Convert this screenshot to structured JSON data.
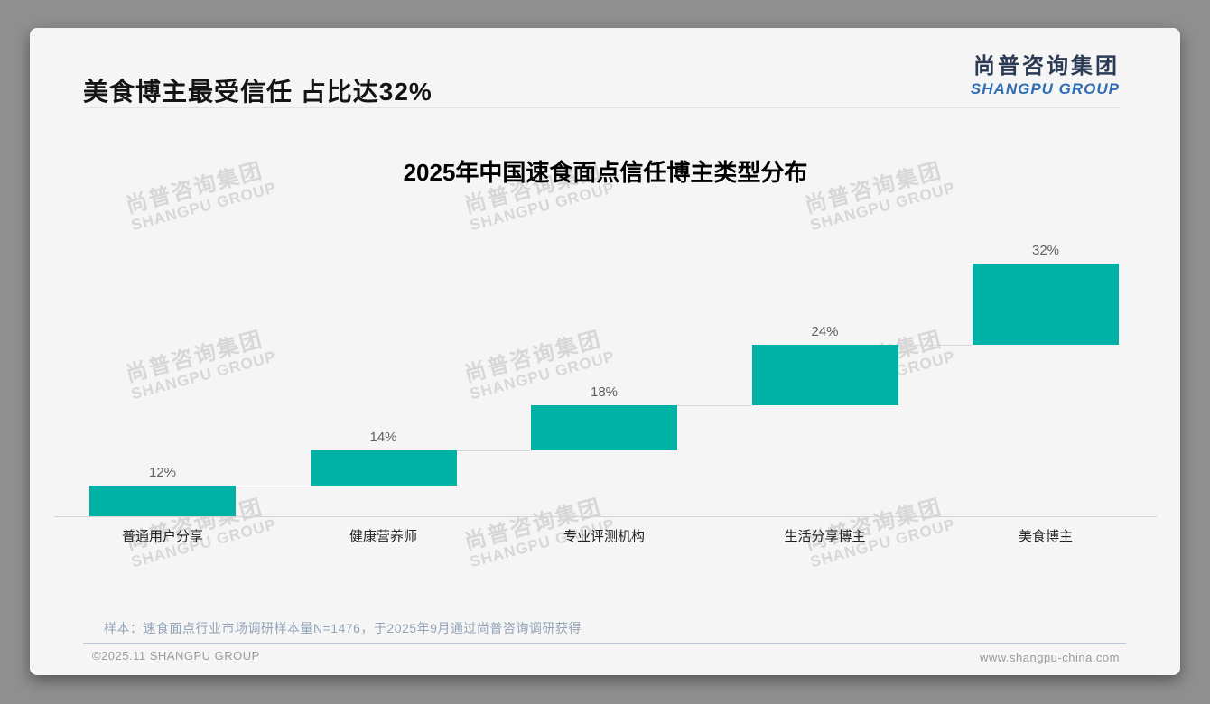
{
  "header": {
    "title": "美食博主最受信任 占比达32%"
  },
  "logo": {
    "cn": "尚普咨询集团",
    "en": "SHANGPU GROUP"
  },
  "watermark": {
    "cn": "尚普咨询集团",
    "en": "SHANGPU GROUP"
  },
  "chart_data": {
    "type": "bar",
    "subtype": "waterfall-step",
    "title": "2025年中国速食面点信任博主类型分布",
    "categories": [
      "普通用户分享",
      "健康营养师",
      "专业评测机构",
      "生活分享博主",
      "美食博主"
    ],
    "values": [
      12,
      14,
      18,
      24,
      32
    ],
    "labels": [
      "12%",
      "14%",
      "18%",
      "24%",
      "32%"
    ],
    "cumulative": [
      12,
      26,
      44,
      68,
      100
    ],
    "ylim": [
      0,
      100
    ],
    "grid": false,
    "legend": false,
    "bar_color": "#00b1a5",
    "connector_color": "#d8d8d8",
    "axis_color": "#d3d3d3"
  },
  "note": "样本：速食面点行业市场调研样本量N=1476，于2025年9月通过尚普咨询调研获得",
  "footer": {
    "left": "©2025.11 SHANGPU GROUP",
    "right": "www.shangpu-china.com"
  },
  "colors": {
    "accent_teal": "#00b1a5",
    "logo_navy": "#2b3b54",
    "logo_blue": "#2f6db5",
    "card_bg": "#f5f5f5",
    "outer_bg": "#8f8f8f",
    "note_blue_gray": "#93a3b8"
  }
}
